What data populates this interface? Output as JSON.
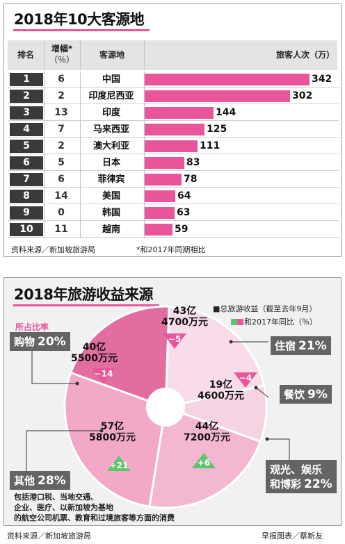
{
  "panel1": {
    "title": "2018年10大客源地",
    "headers": {
      "rank": "排名",
      "growth": "增幅*",
      "growth_unit": "（％）",
      "country": "客源地",
      "visitors": "旅客人次（万）"
    },
    "source": "资料来源／新加坡旅游局",
    "footnote": "*和2017年同期相比"
  },
  "panel2": {
    "title": "2018年旅游收益来源",
    "legend_total": "■总旅游收益（截至去年9月）",
    "legend_change": "和2017年同比（％）",
    "share_label": "所占比率",
    "other_note_lines": [
      "包括港口税、当地交通、",
      "企业、医疗、以新加坡为基地",
      "的航空公司机票、教育和过境旅客等方面的消费"
    ],
    "source": "资料来源／新加坡旅游局",
    "credit": "早报图表／蔡新友"
  },
  "colors": {
    "pink": "#e8559a",
    "dark": "#3a3a3a",
    "green": "#5fc46b",
    "catbg": "#646464"
  },
  "chart_data": [
    {
      "type": "bar",
      "title": "2018年10大客源地",
      "ylabel": "旅客人次（万）",
      "categories": [
        "中国",
        "印度尼西亚",
        "印度",
        "马来西亚",
        "澳大利亚",
        "日本",
        "菲律宾",
        "美国",
        "韩国",
        "越南"
      ],
      "ranks": [
        "1",
        "2",
        "3",
        "4",
        "5",
        "6",
        "7",
        "8",
        "9",
        "10"
      ],
      "growth_pct": [
        "6",
        "2",
        "13",
        "7",
        "2",
        "5",
        "6",
        "14",
        "0",
        "11"
      ],
      "values": [
        342,
        302,
        144,
        125,
        111,
        83,
        78,
        64,
        63,
        59
      ],
      "orientation": "horizontal"
    },
    {
      "type": "pie",
      "title": "2018年旅游收益来源",
      "slices": [
        {
          "name": "住宿",
          "share": "21%",
          "amount_lines": [
            "43亿",
            "4700万元"
          ],
          "change": "−5",
          "direction": "down"
        },
        {
          "name": "餐饮",
          "share": "9%",
          "amount_lines": [
            "19亿",
            "4600万元"
          ],
          "change": "−4",
          "direction": "down"
        },
        {
          "name": "观光、娱乐和博彩",
          "name_lines": [
            "观光、娱乐",
            "和博彩"
          ],
          "share": "22%",
          "amount_lines": [
            "44亿",
            "7200万元"
          ],
          "change": "+6",
          "direction": "up"
        },
        {
          "name": "其他",
          "share": "28%",
          "amount_lines": [
            "57亿",
            "5800万元"
          ],
          "change": "+21",
          "direction": "up"
        },
        {
          "name": "购物",
          "share": "20%",
          "amount_lines": [
            "40亿",
            "5500万元"
          ],
          "change": "−14",
          "direction": "down"
        }
      ],
      "values": [
        21,
        9,
        22,
        28,
        20
      ]
    }
  ]
}
